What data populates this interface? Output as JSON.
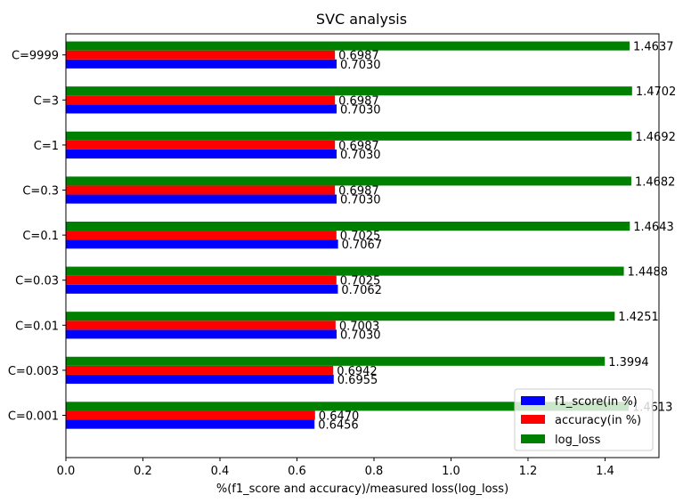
{
  "chart_data": {
    "type": "bar",
    "orientation": "horizontal",
    "title": "SVC analysis",
    "xlabel": "%(f1_score and accuracy)/measured loss(log_loss)",
    "ylabel": "",
    "xlim": [
      0,
      1.54
    ],
    "xticks": [
      "0.0",
      "0.2",
      "0.4",
      "0.6",
      "0.8",
      "1.0",
      "1.2",
      "1.4"
    ],
    "grid": false,
    "legend_position": "lower-right",
    "categories": [
      "C=0.001",
      "C=0.003",
      "C=0.01",
      "C=0.03",
      "C=0.1",
      "C=0.3",
      "C=1",
      "C=3",
      "C=9999"
    ],
    "series": [
      {
        "name": "f1_score(in %)",
        "color": "#0000ff",
        "values": [
          0.6456,
          0.6955,
          0.703,
          0.7062,
          0.7067,
          0.703,
          0.703,
          0.703,
          0.703
        ],
        "labels": [
          "0.6456",
          "0.6955",
          "0.7030",
          "0.7062",
          "0.7067",
          "0.7030",
          "0.7030",
          "0.7030",
          "0.7030"
        ]
      },
      {
        "name": "accuracy(in %)",
        "color": "#ff0000",
        "values": [
          0.647,
          0.6942,
          0.7003,
          0.7025,
          0.7025,
          0.6987,
          0.6987,
          0.6987,
          0.6987
        ],
        "labels": [
          "0.6470",
          "0.6942",
          "0.7003",
          "0.7025",
          "0.7025",
          "0.6987",
          "0.6987",
          "0.6987",
          "0.6987"
        ]
      },
      {
        "name": "log_loss",
        "color": "#008000",
        "values": [
          1.4613,
          1.3994,
          1.4251,
          1.4488,
          1.4643,
          1.4682,
          1.4692,
          1.4702,
          1.4637
        ],
        "labels": [
          "1.4613",
          "1.3994",
          "1.4251",
          "1.4488",
          "1.4643",
          "1.4682",
          "1.4692",
          "1.4702",
          "1.4637"
        ]
      }
    ]
  }
}
